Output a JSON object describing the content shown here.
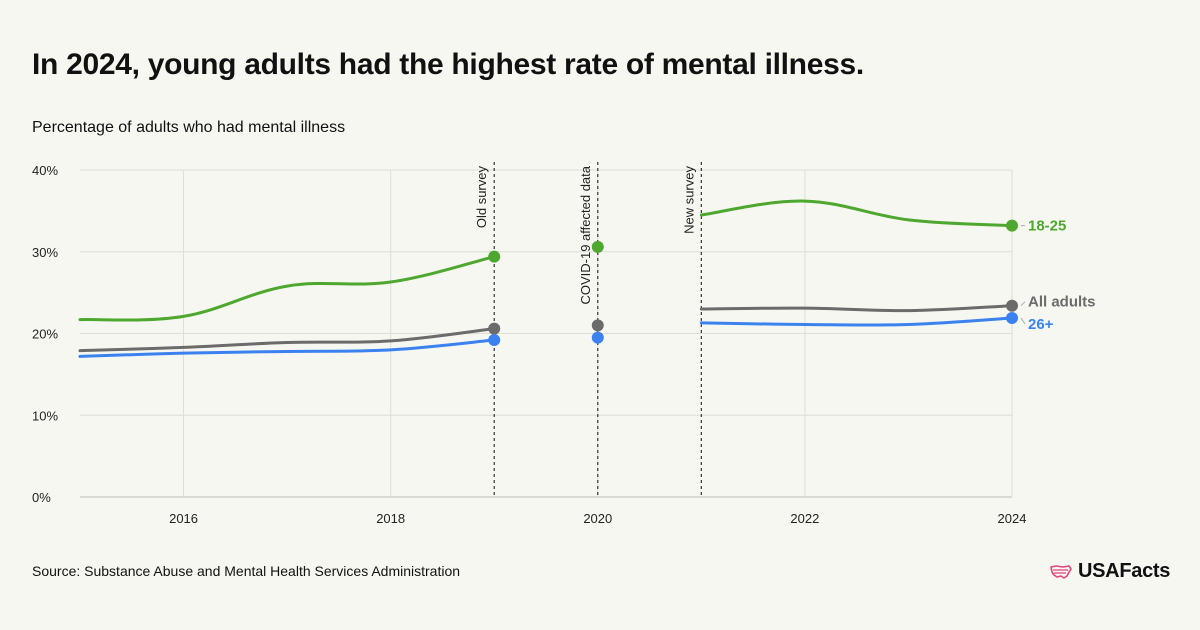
{
  "header": {
    "title": "In 2024, young adults had the highest rate of mental illness.",
    "subtitle": "Percentage of adults who had mental illness"
  },
  "footer": {
    "source": "Source: Substance Abuse and Mental Health Services Administration",
    "brand": "USAFacts"
  },
  "chart_data": {
    "type": "line",
    "title": "",
    "xlabel": "",
    "ylabel": "",
    "xlim": [
      2015,
      2024
    ],
    "ylim": [
      0,
      40
    ],
    "x_ticks": [
      2016,
      2018,
      2020,
      2022,
      2024
    ],
    "x_tick_labels": [
      "2016",
      "2018",
      "2020",
      "2022",
      "2024"
    ],
    "y_ticks": [
      0,
      10,
      20,
      30,
      40
    ],
    "y_tick_labels": [
      "0%",
      "10%",
      "20%",
      "30%",
      "40%"
    ],
    "grid": true,
    "annotations": [
      {
        "x": 2019,
        "label": "Old survey"
      },
      {
        "x": 2020,
        "label": "COVID-19 affected data"
      },
      {
        "x": 2021,
        "label": "New survey"
      }
    ],
    "series": [
      {
        "name": "18-25",
        "color": "#4ea72e",
        "segments": [
          [
            [
              2015,
              21.7
            ],
            [
              2016,
              22.1
            ],
            [
              2017,
              25.8
            ],
            [
              2018,
              26.3
            ],
            [
              2019,
              29.4
            ]
          ],
          [
            [
              2020,
              30.6
            ]
          ],
          [
            [
              2021,
              34.5
            ],
            [
              2022,
              36.2
            ],
            [
              2023,
              33.9
            ],
            [
              2024,
              33.2
            ]
          ]
        ],
        "points": [
          [
            2019,
            29.4
          ],
          [
            2020,
            30.6
          ],
          [
            2024,
            33.2
          ]
        ]
      },
      {
        "name": "All adults",
        "color": "#6b6b6b",
        "segments": [
          [
            [
              2015,
              17.9
            ],
            [
              2016,
              18.3
            ],
            [
              2017,
              18.9
            ],
            [
              2018,
              19.1
            ],
            [
              2019,
              20.6
            ]
          ],
          [
            [
              2020,
              21.0
            ]
          ],
          [
            [
              2021,
              23.0
            ],
            [
              2022,
              23.1
            ],
            [
              2023,
              22.8
            ],
            [
              2024,
              23.4
            ]
          ]
        ],
        "points": [
          [
            2019,
            20.6
          ],
          [
            2020,
            21.0
          ],
          [
            2024,
            23.4
          ]
        ]
      },
      {
        "name": "26+",
        "color": "#3b82f0",
        "segments": [
          [
            [
              2015,
              17.2
            ],
            [
              2016,
              17.6
            ],
            [
              2017,
              17.8
            ],
            [
              2018,
              18.0
            ],
            [
              2019,
              19.2
            ]
          ],
          [
            [
              2020,
              19.5
            ]
          ],
          [
            [
              2021,
              21.3
            ],
            [
              2022,
              21.1
            ],
            [
              2023,
              21.1
            ],
            [
              2024,
              21.9
            ]
          ]
        ],
        "points": [
          [
            2019,
            19.2
          ],
          [
            2020,
            19.5
          ],
          [
            2024,
            21.9
          ]
        ]
      }
    ]
  }
}
